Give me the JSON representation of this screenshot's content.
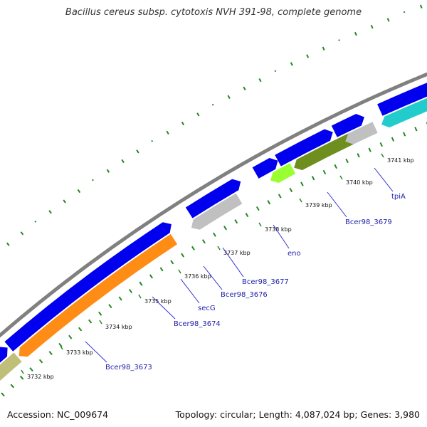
{
  "title": "Bacillus cereus subsp. cytotoxis NVH 391-98, complete genome",
  "footer": {
    "accession": "Accession: NC_009674",
    "summary": "Topology: circular; Length: 4,087,024 bp; Genes: 3,980"
  },
  "colors": {
    "backbone": "#808080",
    "forward_cds": "#0000ee",
    "reverse_cds": "#22cccc",
    "reverse_cds_2": "#ff8c14",
    "reverse_gray": "#c0c0c0",
    "reverse_olive": "#bfbf7a",
    "reverse_green_dark": "#6e8f1e",
    "reverse_green_light": "#99ff33",
    "tick_dots": "#228822",
    "label_lines": "#3333cc"
  },
  "position_ticks": [
    "3732 kbp",
    "3733 kbp",
    "3734 kbp",
    "3735 kbp",
    "3736 kbp",
    "3737 kbp",
    "3738 kbp",
    "3739 kbp",
    "3740 kbp",
    "3741 kbp"
  ],
  "gene_labels": [
    "Bcer98_3673",
    "Bcer98_3674",
    "secG",
    "Bcer98_3676",
    "Bcer98_3677",
    "eno",
    "Bcer98_3679",
    "tpiA"
  ]
}
